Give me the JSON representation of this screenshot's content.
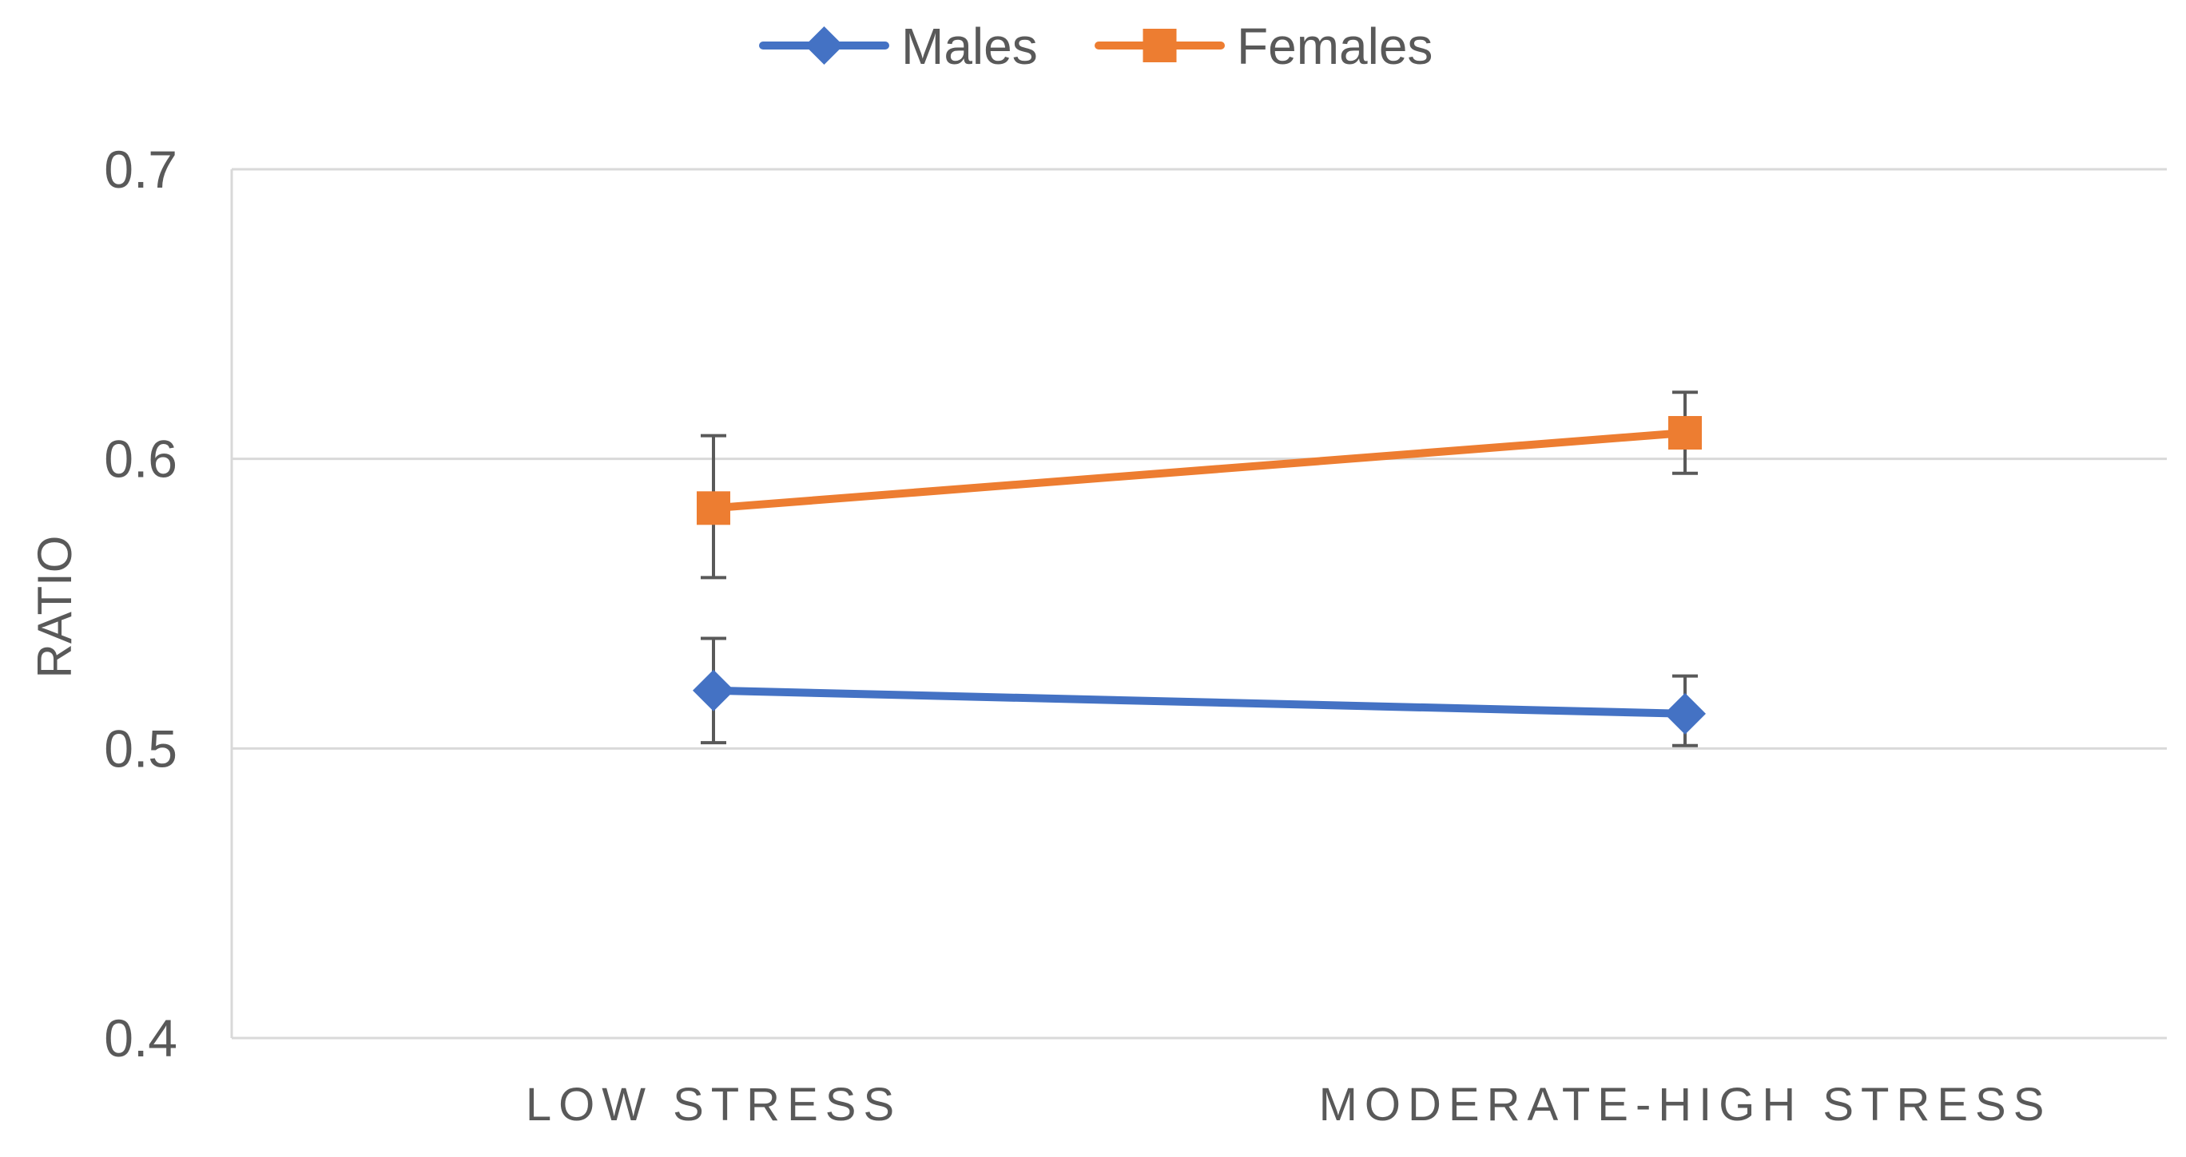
{
  "chart_data": {
    "type": "line",
    "title": "",
    "xlabel": "",
    "ylabel": "RATIO",
    "categories": [
      "LOW STRESS",
      "MODERATE-HIGH STRESS"
    ],
    "ylim": [
      0.4,
      0.7
    ],
    "yticks": [
      0.4,
      0.5,
      0.6,
      0.7
    ],
    "ytick_labels": [
      "0.4",
      "0.5",
      "0.6",
      "0.7"
    ],
    "grid": true,
    "legend_position": "top-center",
    "series": [
      {
        "name": "Males",
        "color": "#4472c4",
        "marker": "diamond",
        "values": [
          0.52,
          0.512
        ],
        "err_low": [
          0.502,
          0.501
        ],
        "err_high": [
          0.538,
          0.525
        ]
      },
      {
        "name": "Females",
        "color": "#ed7d31",
        "marker": "square",
        "values": [
          0.583,
          0.609
        ],
        "err_low": [
          0.559,
          0.595
        ],
        "err_high": [
          0.608,
          0.623
        ]
      }
    ]
  }
}
